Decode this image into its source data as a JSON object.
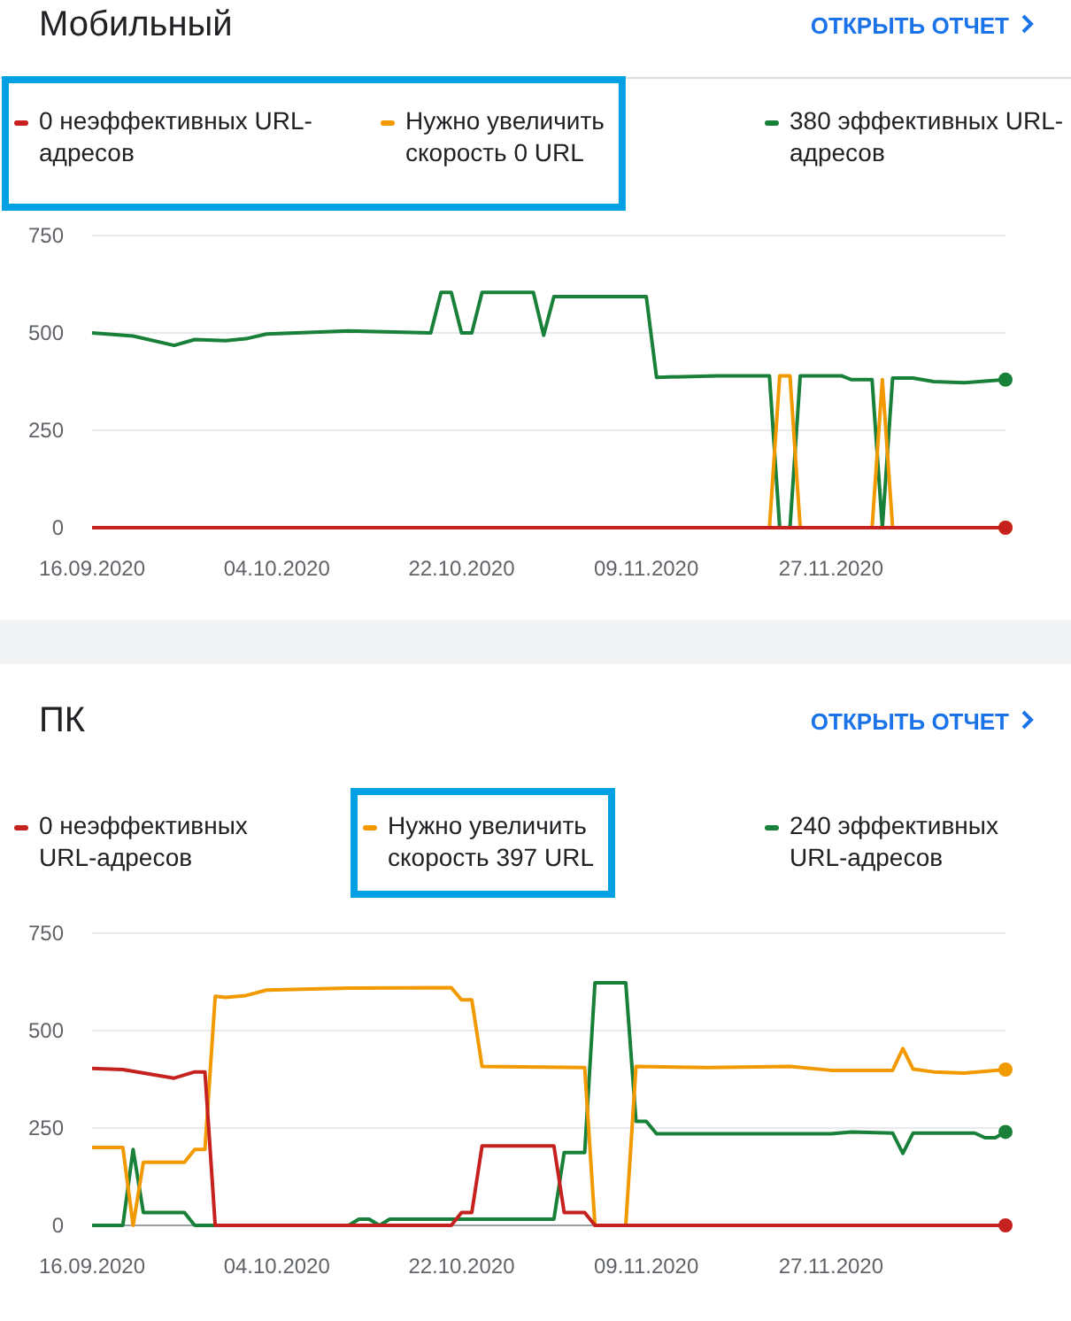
{
  "chart_data": [
    {
      "type": "line",
      "title": "Мобильный",
      "annotations": [
        "ОТКРЫТЬ ОТЧЕТ"
      ],
      "legend": "top",
      "grid": "y",
      "xlim": [
        "2020-09-16",
        "2020-12-14"
      ],
      "xticks": [
        {
          "value": "2020-09-16",
          "label": "16.09.2020"
        },
        {
          "value": "2020-10-04",
          "label": "04.10.2020"
        },
        {
          "value": "2020-10-22",
          "label": "22.10.2020"
        },
        {
          "value": "2020-11-09",
          "label": "09.11.2020"
        },
        {
          "value": "2020-11-27",
          "label": "27.11.2020"
        }
      ],
      "ylim": [
        0,
        750
      ],
      "yticks": [
        0,
        250,
        500,
        750
      ],
      "series": [
        {
          "name": "0 неэффективных URL-адресов",
          "color": "#c5221f",
          "x": [
            "2020-09-16",
            "2020-12-14"
          ],
          "values": [
            0,
            0
          ]
        },
        {
          "name": "Нужно увеличить скорость 0 URL",
          "color": "#f29900",
          "x": [
            "2020-11-21",
            "2020-11-22",
            "2020-11-23",
            "2020-11-24",
            "2020-12-01",
            "2020-12-02",
            "2020-12-03",
            "2020-12-14"
          ],
          "values": [
            0,
            390,
            390,
            0,
            0,
            380,
            0,
            0
          ]
        },
        {
          "name": "380 эффективных URL-адресов",
          "color": "#188038",
          "x": [
            "2020-09-16",
            "2020-09-20",
            "2020-09-24",
            "2020-09-26",
            "2020-09-29",
            "2020-10-01",
            "2020-10-03",
            "2020-10-11",
            "2020-10-19",
            "2020-10-20",
            "2020-10-21",
            "2020-10-22",
            "2020-10-23",
            "2020-10-24",
            "2020-10-29",
            "2020-10-30",
            "2020-10-31",
            "2020-11-09",
            "2020-11-10",
            "2020-11-16",
            "2020-11-21",
            "2020-11-22",
            "2020-11-23",
            "2020-11-24",
            "2020-11-28",
            "2020-11-29",
            "2020-12-01",
            "2020-12-02",
            "2020-12-03",
            "2020-12-05",
            "2020-12-07",
            "2020-12-10",
            "2020-12-14"
          ],
          "values": [
            500,
            492,
            468,
            483,
            480,
            485,
            497,
            505,
            500,
            604,
            604,
            500,
            500,
            604,
            604,
            494,
            593,
            593,
            386,
            390,
            390,
            0,
            0,
            390,
            390,
            380,
            380,
            0,
            384,
            384,
            375,
            372,
            380
          ]
        }
      ]
    },
    {
      "type": "line",
      "title": "ПК",
      "annotations": [
        "ОТКРЫТЬ ОТЧЕТ"
      ],
      "legend": "top",
      "grid": "y",
      "xlim": [
        "2020-09-16",
        "2020-12-14"
      ],
      "xticks": [
        {
          "value": "2020-09-16",
          "label": "16.09.2020"
        },
        {
          "value": "2020-10-04",
          "label": "04.10.2020"
        },
        {
          "value": "2020-10-22",
          "label": "22.10.2020"
        },
        {
          "value": "2020-11-09",
          "label": "09.11.2020"
        },
        {
          "value": "2020-11-27",
          "label": "27.11.2020"
        }
      ],
      "ylim": [
        0,
        750
      ],
      "yticks": [
        0,
        250,
        500,
        750
      ],
      "series": [
        {
          "name": "0 неэффективных URL-адресов",
          "color": "#c5221f",
          "x": [
            "2020-09-16",
            "2020-09-19",
            "2020-09-24",
            "2020-09-26",
            "2020-09-27",
            "2020-09-28",
            "2020-10-21",
            "2020-10-22",
            "2020-10-23",
            "2020-10-24",
            "2020-10-31",
            "2020-11-01",
            "2020-11-03",
            "2020-11-04",
            "2020-12-14"
          ],
          "values": [
            403,
            400,
            378,
            394,
            394,
            0,
            0,
            33,
            33,
            204,
            204,
            33,
            33,
            0,
            0
          ]
        },
        {
          "name": "Нужно увеличить скорость 397 URL",
          "color": "#f29900",
          "x": [
            "2020-09-16",
            "2020-09-19",
            "2020-09-20",
            "2020-09-21",
            "2020-09-25",
            "2020-09-26",
            "2020-09-27",
            "2020-09-28",
            "2020-09-29",
            "2020-10-01",
            "2020-10-03",
            "2020-10-11",
            "2020-10-21",
            "2020-10-22",
            "2020-10-23",
            "2020-10-24",
            "2020-11-03",
            "2020-11-04",
            "2020-11-07",
            "2020-11-08",
            "2020-11-15",
            "2020-11-23",
            "2020-11-27",
            "2020-12-03",
            "2020-12-04",
            "2020-12-05",
            "2020-12-07",
            "2020-12-10",
            "2020-12-14"
          ],
          "values": [
            200,
            200,
            0,
            162,
            162,
            195,
            195,
            588,
            585,
            590,
            604,
            609,
            610,
            579,
            579,
            408,
            405,
            0,
            0,
            408,
            405,
            408,
            398,
            398,
            454,
            401,
            394,
            391,
            400
          ]
        },
        {
          "name": "240 эффективных URL-адресов",
          "color": "#188038",
          "x": [
            "2020-09-16",
            "2020-09-19",
            "2020-09-20",
            "2020-09-21",
            "2020-09-25",
            "2020-09-26",
            "2020-09-28",
            "2020-10-11",
            "2020-10-12",
            "2020-10-13",
            "2020-10-14",
            "2020-10-15",
            "2020-10-31",
            "2020-11-01",
            "2020-11-03",
            "2020-11-04",
            "2020-11-07",
            "2020-11-08",
            "2020-11-09",
            "2020-11-10",
            "2020-11-27",
            "2020-11-29",
            "2020-12-03",
            "2020-12-04",
            "2020-12-05",
            "2020-12-11",
            "2020-12-12",
            "2020-12-13",
            "2020-12-14"
          ],
          "values": [
            0,
            0,
            195,
            33,
            33,
            0,
            0,
            0,
            16,
            16,
            0,
            16,
            16,
            187,
            187,
            623,
            623,
            267,
            267,
            235,
            235,
            240,
            237,
            185,
            237,
            237,
            225,
            225,
            240
          ]
        }
      ]
    }
  ]
}
